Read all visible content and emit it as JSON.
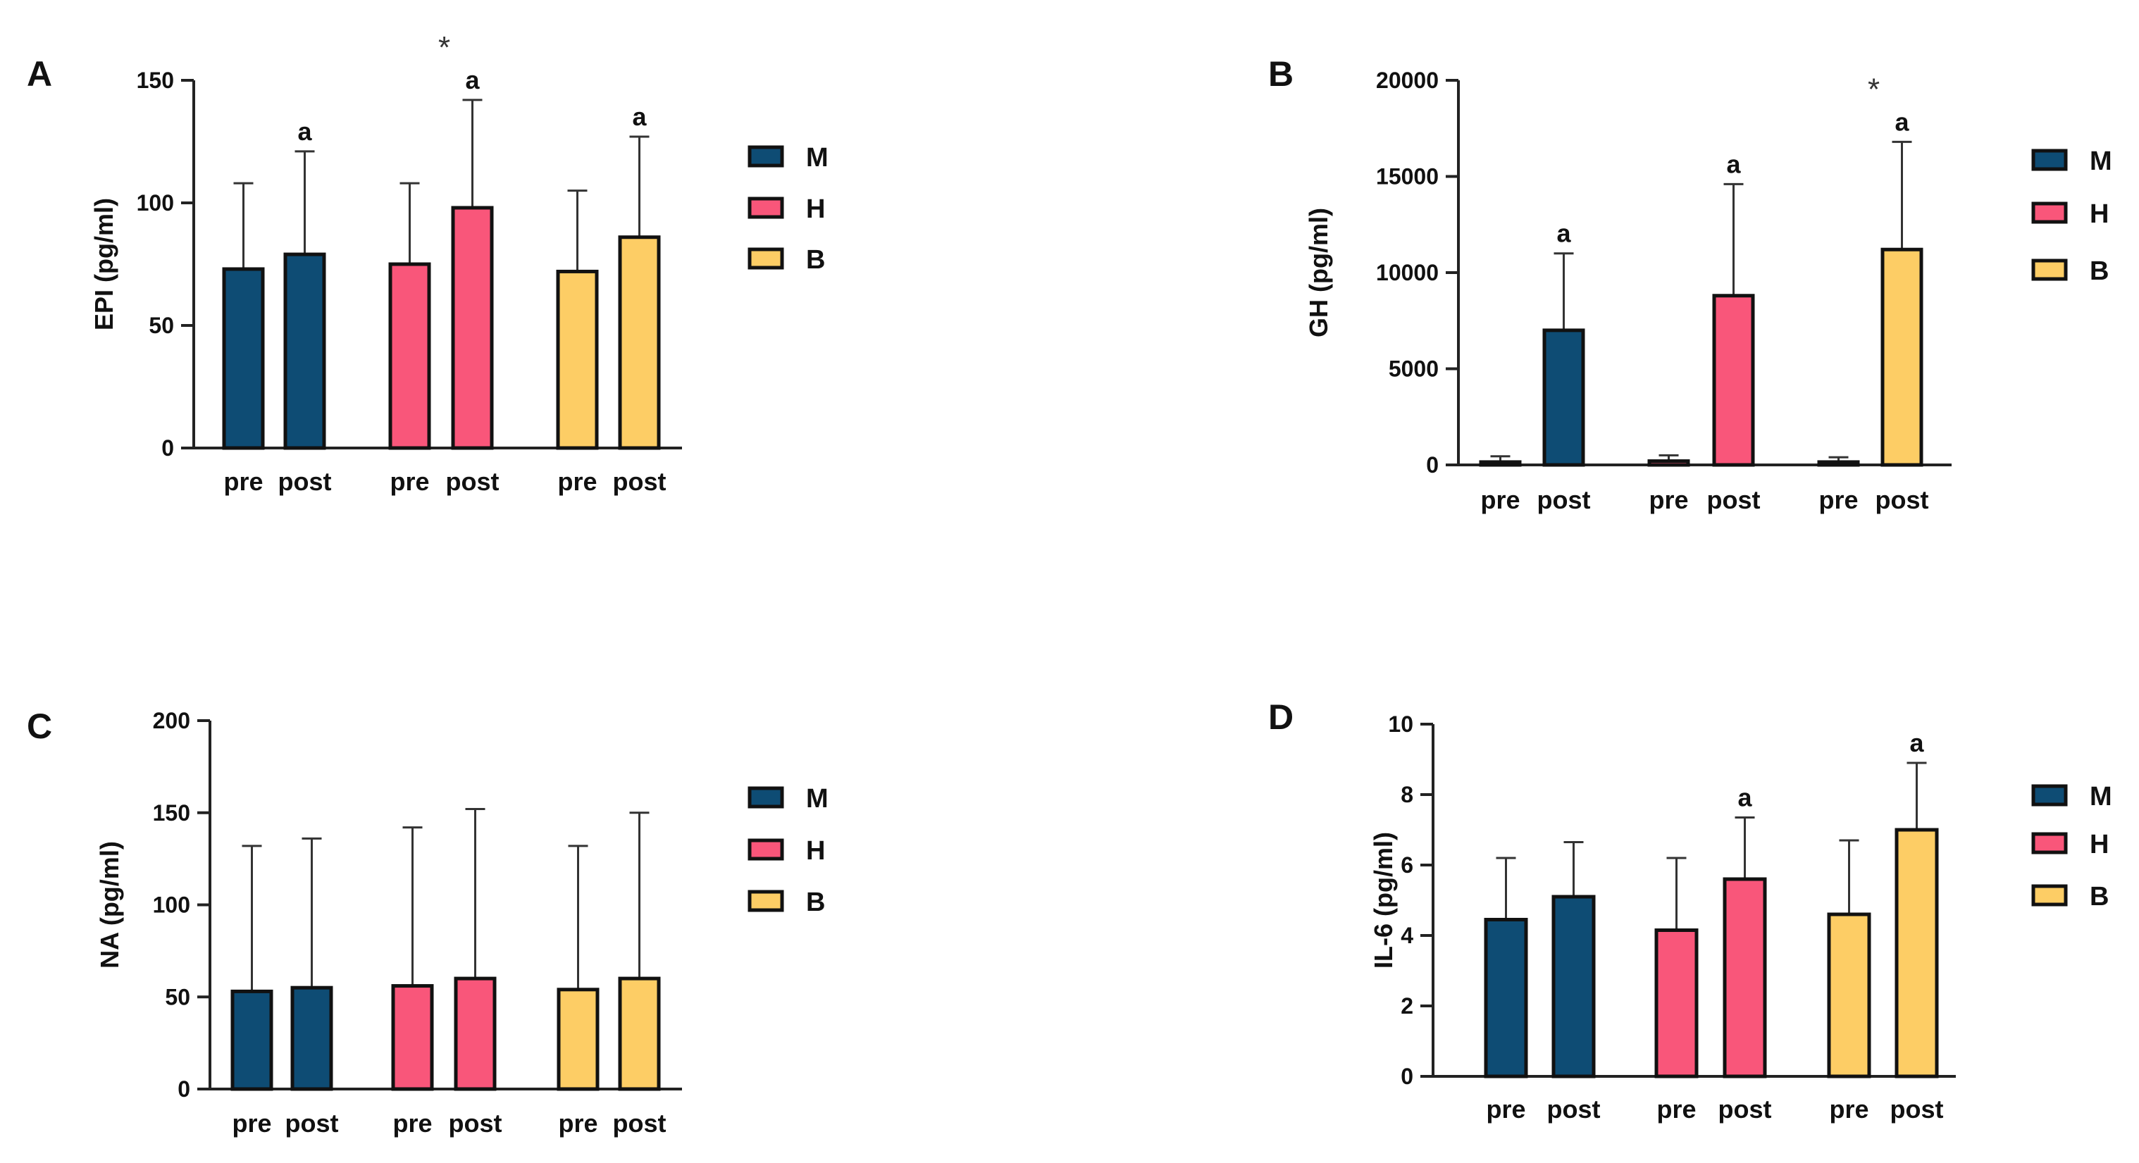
{
  "colors": {
    "M": "#0e4c74",
    "H": "#f9567a",
    "B": "#fdcd65",
    "outline": "#111111"
  },
  "chart_data": [
    {
      "type": "bar",
      "panel": "A",
      "ylabel": "EPI (pg/ml)",
      "ylim": [
        0,
        150
      ],
      "yticks": [
        0,
        50,
        100,
        150
      ],
      "categories": [
        "pre",
        "post",
        "pre",
        "post",
        "pre",
        "post"
      ],
      "groups": [
        "M",
        "M",
        "H",
        "H",
        "B",
        "B"
      ],
      "values": [
        73,
        79,
        75,
        98,
        72,
        86
      ],
      "errors": [
        35,
        42,
        33,
        44,
        33,
        41
      ],
      "annotations": [
        "",
        "a",
        "",
        "a",
        "",
        "a"
      ],
      "stars": [
        "",
        "",
        "",
        "*",
        "",
        ""
      ],
      "legend": [
        "M",
        "H",
        "B"
      ]
    },
    {
      "type": "bar",
      "panel": "B",
      "ylabel": "GH (pg/ml)",
      "ylim": [
        0,
        20000
      ],
      "yticks": [
        0,
        5000,
        10000,
        15000,
        20000
      ],
      "categories": [
        "pre",
        "post",
        "pre",
        "post",
        "pre",
        "post"
      ],
      "groups": [
        "M",
        "M",
        "H",
        "H",
        "B",
        "B"
      ],
      "values": [
        150,
        7000,
        200,
        8800,
        150,
        11200
      ],
      "errors": [
        300,
        4000,
        300,
        5800,
        250,
        5600
      ],
      "annotations": [
        "",
        "a",
        "",
        "a",
        "",
        "a"
      ],
      "stars": [
        "",
        "",
        "",
        "",
        "",
        "*"
      ],
      "legend": [
        "M",
        "H",
        "B"
      ]
    },
    {
      "type": "bar",
      "panel": "C",
      "ylabel": "NA (pg/ml)",
      "ylim": [
        0,
        200
      ],
      "yticks": [
        0,
        50,
        100,
        150,
        200
      ],
      "categories": [
        "pre",
        "post",
        "pre",
        "post",
        "pre",
        "post"
      ],
      "groups": [
        "M",
        "M",
        "H",
        "H",
        "B",
        "B"
      ],
      "values": [
        53,
        55,
        56,
        60,
        54,
        60
      ],
      "errors": [
        79,
        81,
        86,
        92,
        78,
        90
      ],
      "annotations": [
        "",
        "",
        "",
        "",
        "",
        ""
      ],
      "stars": [
        "",
        "",
        "",
        "",
        "",
        ""
      ],
      "legend": [
        "M",
        "H",
        "B"
      ]
    },
    {
      "type": "bar",
      "panel": "D",
      "ylabel": "IL-6 (pg/ml)",
      "ylim": [
        0,
        10
      ],
      "yticks": [
        0,
        2,
        4,
        6,
        8,
        10
      ],
      "categories": [
        "pre",
        "post",
        "pre",
        "post",
        "pre",
        "post"
      ],
      "groups": [
        "M",
        "M",
        "H",
        "H",
        "B",
        "B"
      ],
      "values": [
        4.45,
        5.1,
        4.15,
        5.6,
        4.6,
        7.0
      ],
      "errors": [
        1.75,
        1.55,
        2.05,
        1.75,
        2.1,
        1.9
      ],
      "annotations": [
        "",
        "",
        "",
        "a",
        "",
        "a"
      ],
      "stars": [
        "",
        "",
        "",
        "",
        "",
        ""
      ],
      "legend": [
        "M",
        "H",
        "B"
      ]
    }
  ]
}
